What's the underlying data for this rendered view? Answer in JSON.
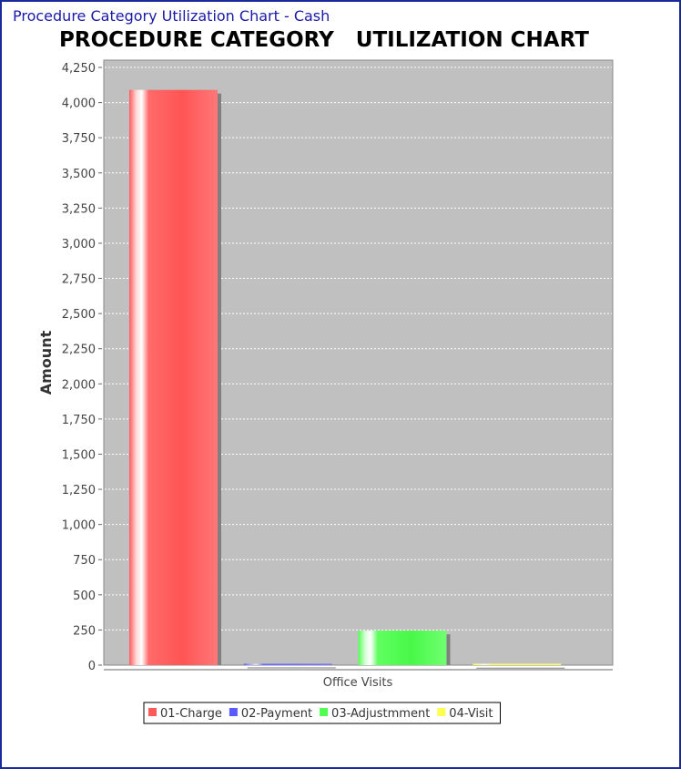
{
  "window": {
    "title": "Procedure Category Utilization Chart - Cash"
  },
  "chart_data": {
    "type": "bar",
    "title": "PROCEDURE CATEGORY   UTILIZATION CHART",
    "xlabel": "",
    "ylabel": "Amount",
    "categories": [
      "Office Visits"
    ],
    "series": [
      {
        "name": "01-Charge",
        "values": [
          4090
        ],
        "color": "#ff5a5a"
      },
      {
        "name": "02-Payment",
        "values": [
          10
        ],
        "color": "#5a5aff"
      },
      {
        "name": "03-Adjustmment",
        "values": [
          245
        ],
        "color": "#50ff50"
      },
      {
        "name": "04-Visit",
        "values": [
          8
        ],
        "color": "#ffff50"
      }
    ],
    "ylim": [
      0,
      4250
    ],
    "yticks": [
      "0",
      "250",
      "500",
      "750",
      "1,000",
      "1,250",
      "1,500",
      "1,750",
      "2,000",
      "2,250",
      "2,500",
      "2,750",
      "3,000",
      "3,250",
      "3,500",
      "3,750",
      "4,000",
      "4,250"
    ],
    "grid": true,
    "legend_position": "bottom",
    "plot_background": "#c0c0c0"
  }
}
